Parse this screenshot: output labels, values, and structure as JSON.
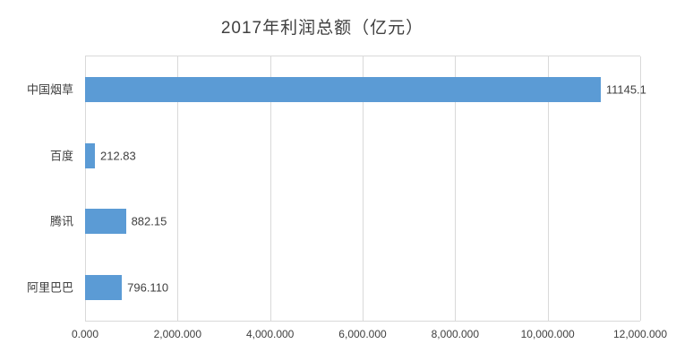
{
  "chart_data": {
    "type": "bar",
    "orientation": "horizontal",
    "title": "2017年利润总额（亿元）",
    "categories": [
      "中国烟草",
      "百度",
      "腾讯",
      "阿里巴巴"
    ],
    "values": [
      11145.1,
      212.83,
      882.15,
      796.11
    ],
    "data_labels": [
      "11145.1",
      "212.83",
      "882.15",
      "796.110"
    ],
    "x_ticks": [
      "0.000",
      "2,000.000",
      "4,000.000",
      "6,000.000",
      "8,000.000",
      "10,000.000",
      "12,000.000"
    ],
    "x_tick_values": [
      0,
      2000,
      4000,
      6000,
      8000,
      10000,
      12000
    ],
    "xlim": [
      0,
      12000
    ],
    "bar_color": "#5b9bd5",
    "gridline_color": "#d9d9d9",
    "grid": "vertical",
    "legend": "none"
  }
}
